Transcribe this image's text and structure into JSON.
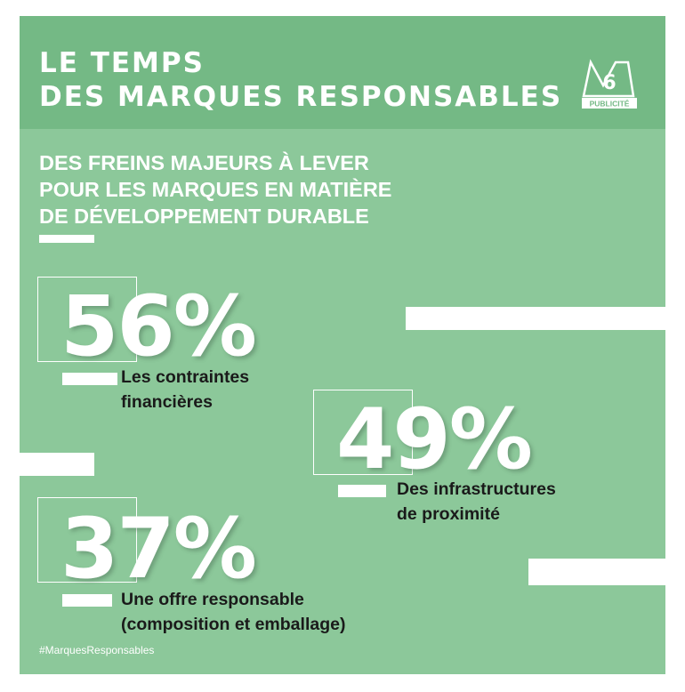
{
  "header": {
    "title_line1": "LE TEMPS",
    "title_line2": "DES MARQUES RESPONSABLES",
    "logo_number": "6",
    "logo_caption": "PUBLICITÉ"
  },
  "subtitle": {
    "line1": "DES FREINS MAJEURS À LEVER",
    "line2": "POUR LES MARQUES EN MATIÈRE",
    "line3": "DE DÉVELOPPEMENT DURABLE"
  },
  "stats": [
    {
      "value": "56%",
      "label_line1": "Les contraintes",
      "label_line2": "financières"
    },
    {
      "value": "49%",
      "label_line1": "Des infrastructures",
      "label_line2": "de proximité"
    },
    {
      "value": "37%",
      "label_line1": "Une offre responsable",
      "label_line2": "(composition et emballage)"
    }
  ],
  "footer": {
    "hashtag": "#MarquesResponsables"
  },
  "colors": {
    "background": "#8cc89a",
    "header": "#74b985",
    "text": "#ffffff",
    "label": "#1a1a1a"
  }
}
